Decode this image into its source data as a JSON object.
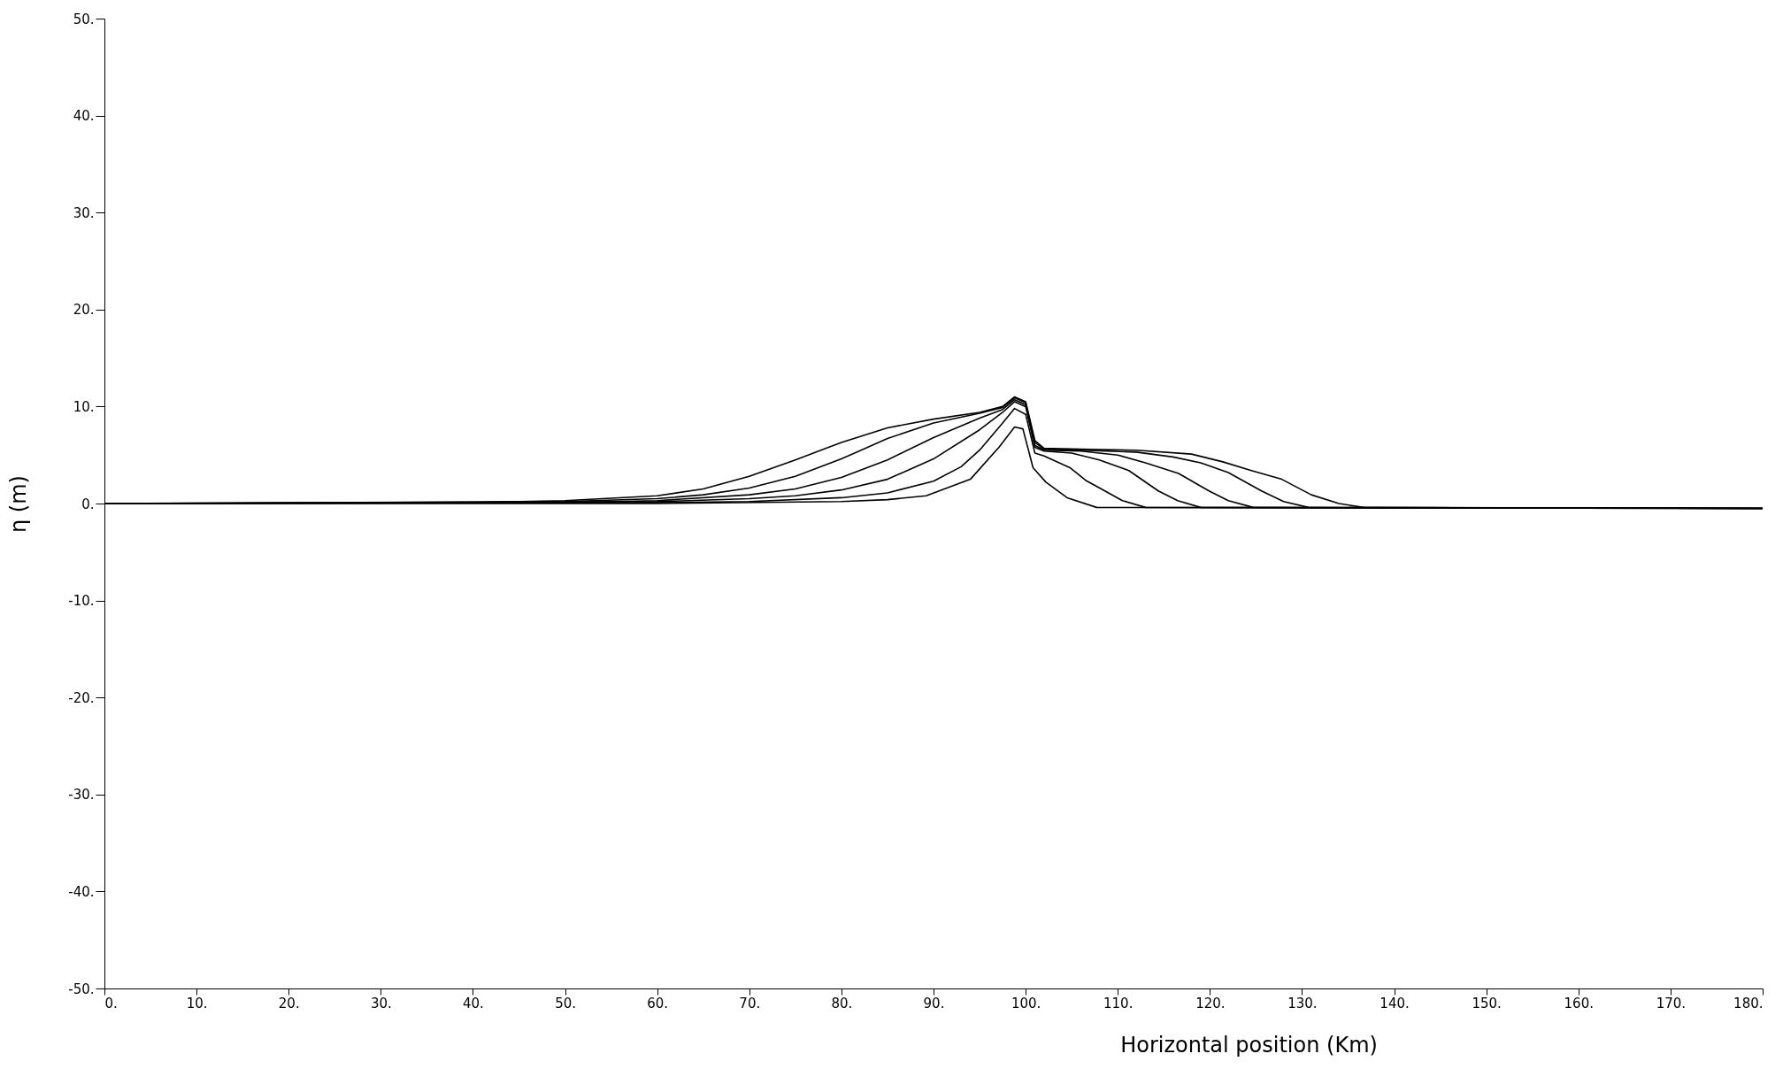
{
  "chart_data": {
    "type": "line",
    "xlabel": "Horizontal position (Km)",
    "ylabel": "η (m)",
    "xlim": [
      0,
      180
    ],
    "ylim": [
      -50,
      50
    ],
    "xticks": [
      {
        "value": 0,
        "label": "0."
      },
      {
        "value": 10,
        "label": "10."
      },
      {
        "value": 20,
        "label": "20."
      },
      {
        "value": 30,
        "label": "30."
      },
      {
        "value": 40,
        "label": "40."
      },
      {
        "value": 50,
        "label": "50."
      },
      {
        "value": 60,
        "label": "60."
      },
      {
        "value": 70,
        "label": "70."
      },
      {
        "value": 80,
        "label": "80."
      },
      {
        "value": 90,
        "label": "90."
      },
      {
        "value": 100,
        "label": "100."
      },
      {
        "value": 110,
        "label": "110."
      },
      {
        "value": 120,
        "label": "120."
      },
      {
        "value": 130,
        "label": "130."
      },
      {
        "value": 140,
        "label": "140."
      },
      {
        "value": 150,
        "label": "150."
      },
      {
        "value": 160,
        "label": "160."
      },
      {
        "value": 170,
        "label": "170."
      },
      {
        "value": 180,
        "label": "180."
      }
    ],
    "yticks": [
      {
        "value": -50,
        "label": "-50."
      },
      {
        "value": -40,
        "label": "-40."
      },
      {
        "value": -30,
        "label": "-30."
      },
      {
        "value": -20,
        "label": "-20."
      },
      {
        "value": -10,
        "label": "-10."
      },
      {
        "value": 0,
        "label": "0."
      },
      {
        "value": 10,
        "label": "10."
      },
      {
        "value": 20,
        "label": "20."
      },
      {
        "value": 30,
        "label": "30."
      },
      {
        "value": 40,
        "label": "40."
      },
      {
        "value": 50,
        "label": "50."
      }
    ],
    "grid": false,
    "legend": false,
    "marker": "none",
    "line_style": "solid",
    "series": [
      {
        "color": "#000000",
        "x": [
          0,
          60,
          80,
          85,
          89.2,
          94,
          97.1,
          98.8,
          99.7,
          100.8,
          102.2,
          104.5,
          107.7,
          180
        ],
        "values": [
          0,
          0,
          0.2,
          0.4,
          0.8,
          2.5,
          5.8,
          7.9,
          7.7,
          3.7,
          2.2,
          0.6,
          -0.4,
          -0.5
        ]
      },
      {
        "color": "#000000",
        "x": [
          0,
          60,
          70,
          80,
          85,
          90,
          93,
          95,
          97.5,
          98.8,
          100,
          101,
          102,
          104.8,
          106.5,
          108.6,
          110.5,
          113,
          180
        ],
        "values": [
          0,
          0.1,
          0.2,
          0.6,
          1.1,
          2.3,
          3.8,
          5.5,
          8.3,
          9.8,
          9.2,
          5.2,
          4.9,
          3.7,
          2.4,
          1.3,
          0.3,
          -0.4,
          -0.5
        ]
      },
      {
        "color": "#000000",
        "x": [
          0,
          60,
          70,
          75,
          80,
          85,
          90,
          95,
          97.5,
          98.8,
          100,
          101,
          102,
          105,
          108,
          111.2,
          114.4,
          116.5,
          119,
          180
        ],
        "values": [
          0,
          0.2,
          0.5,
          0.8,
          1.4,
          2.5,
          4.6,
          7.6,
          9.4,
          10.5,
          10,
          5.8,
          5.4,
          5.2,
          4.5,
          3.4,
          1.3,
          0.3,
          -0.4,
          -0.5
        ]
      },
      {
        "color": "#000000",
        "x": [
          0,
          50,
          60,
          70,
          75,
          80,
          85,
          90,
          95,
          97.5,
          98.8,
          100,
          101,
          102,
          106,
          110,
          113,
          116.6,
          119.9,
          122,
          124.7,
          180
        ],
        "values": [
          0,
          0.1,
          0.3,
          0.9,
          1.5,
          2.7,
          4.5,
          6.8,
          8.8,
          9.7,
          10.7,
          10.2,
          6,
          5.5,
          5.4,
          5,
          4.2,
          3.1,
          1.3,
          0.3,
          -0.4,
          -0.5
        ]
      },
      {
        "color": "#000000",
        "x": [
          0,
          50,
          60,
          65,
          70,
          75,
          80,
          85,
          90,
          95,
          97.5,
          98.8,
          100,
          101,
          102,
          106,
          112,
          116,
          119,
          122,
          125.6,
          128,
          130.7,
          180
        ],
        "values": [
          0,
          0.2,
          0.5,
          0.9,
          1.6,
          2.8,
          4.6,
          6.7,
          8.3,
          9.3,
          9.9,
          10.9,
          10.4,
          6.3,
          5.6,
          5.5,
          5.3,
          4.8,
          4.2,
          3.2,
          1.3,
          0.2,
          -0.4,
          -0.5
        ]
      },
      {
        "color": "#000000",
        "x": [
          0,
          40,
          50,
          60,
          65,
          70,
          75,
          80,
          85,
          90,
          95,
          97.5,
          98.8,
          100,
          101,
          102,
          106,
          112,
          118,
          121.4,
          124.5,
          127.8,
          131,
          134,
          136.7,
          180
        ],
        "values": [
          0,
          0.1,
          0.3,
          0.8,
          1.5,
          2.8,
          4.5,
          6.3,
          7.8,
          8.7,
          9.4,
          10,
          11,
          10.5,
          6.5,
          5.7,
          5.6,
          5.5,
          5.1,
          4.3,
          3.4,
          2.5,
          0.9,
          0,
          -0.4,
          -0.5
        ]
      }
    ]
  }
}
